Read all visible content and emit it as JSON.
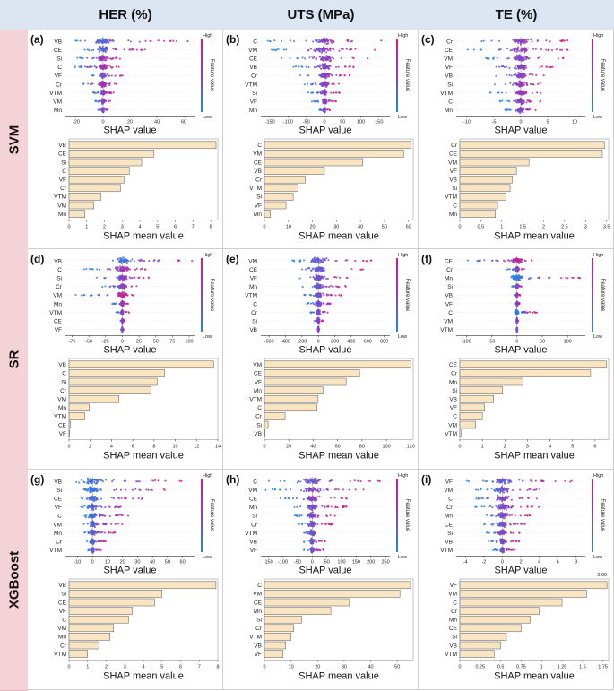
{
  "columns": [
    "HER (%)",
    "UTS (MPa)",
    "TE (%)"
  ],
  "rows": [
    "SVM",
    "SR",
    "XGBoost"
  ],
  "legend": {
    "high": "High",
    "low": "Low",
    "title": "Feature value"
  },
  "colors": {
    "high": "#e0157d",
    "low": "#1e88e5",
    "mid": "#8a3fc8",
    "bar_fill": "#fae5c3",
    "bar_stroke": "#555555",
    "col_header_bg": "#dce6f2",
    "row_header_bg": "#f3d3d7"
  },
  "chart_data": [
    {
      "panel": "(a)",
      "model": "SVM",
      "target": "HER (%)",
      "beeswarm": {
        "type": "scatter",
        "xlabel": "SHAP value",
        "features": [
          "VB",
          "CE",
          "Si",
          "C",
          "VF",
          "Cr",
          "VTM",
          "VM",
          "Mn"
        ],
        "xticks": [
          -20,
          0,
          20,
          40,
          60
        ],
        "xlim": [
          -28,
          68
        ],
        "spreads": [
          [
            -22,
            66
          ],
          [
            -14,
            32
          ],
          [
            -20,
            16
          ],
          [
            -22,
            12
          ],
          [
            -10,
            16
          ],
          [
            -18,
            10
          ],
          [
            -8,
            8
          ],
          [
            -6,
            6
          ],
          [
            -4,
            4
          ]
        ]
      },
      "bar": {
        "type": "bar",
        "xlabel": "SHAP mean value",
        "categories": [
          "VB",
          "CE",
          "Si",
          "C",
          "VF",
          "Cr",
          "VTM",
          "VM",
          "Mn"
        ],
        "values": [
          8.3,
          4.8,
          4.1,
          3.4,
          3.1,
          2.9,
          1.8,
          1.4,
          0.9
        ],
        "xticks": [
          0,
          1,
          2,
          3,
          4,
          5,
          6,
          7,
          8
        ],
        "xlim": [
          0,
          8.4
        ]
      }
    },
    {
      "panel": "(b)",
      "model": "SVM",
      "target": "UTS (MPa)",
      "beeswarm": {
        "type": "scatter",
        "xlabel": "SHAP value",
        "features": [
          "C",
          "VM",
          "CE",
          "VB",
          "Cr",
          "VTM",
          "Si",
          "VF",
          "Mn"
        ],
        "xticks": [
          -150,
          -100,
          -50,
          0,
          50,
          100,
          150
        ],
        "xlim": [
          -175,
          180
        ],
        "spreads": [
          [
            -160,
            165
          ],
          [
            -150,
            150
          ],
          [
            -120,
            120
          ],
          [
            -90,
            90
          ],
          [
            -70,
            70
          ],
          [
            -55,
            55
          ],
          [
            -45,
            45
          ],
          [
            -35,
            35
          ],
          [
            -15,
            15
          ]
        ]
      },
      "bar": {
        "type": "bar",
        "xlabel": "SHAP mean value",
        "categories": [
          "C",
          "VM",
          "CE",
          "VB",
          "Cr",
          "VTM",
          "Si",
          "VF",
          "Mn"
        ],
        "values": [
          61,
          58,
          41,
          25,
          17,
          14,
          12,
          9,
          2.5
        ],
        "xticks": [
          0,
          10,
          20,
          30,
          40,
          50,
          60
        ],
        "xlim": [
          0,
          62
        ]
      }
    },
    {
      "panel": "(c)",
      "model": "SVM",
      "target": "TE (%)",
      "beeswarm": {
        "type": "scatter",
        "xlabel": "SHAP value",
        "features": [
          "Cr",
          "CE",
          "VM",
          "VF",
          "VB",
          "Si",
          "VTM",
          "C",
          "Mn"
        ],
        "xticks": [
          -10,
          -5,
          0,
          5,
          10
        ],
        "xlim": [
          -12,
          12
        ],
        "spreads": [
          [
            -9,
            9
          ],
          [
            -10,
            9
          ],
          [
            -7,
            8
          ],
          [
            -6,
            6
          ],
          [
            -5,
            5
          ],
          [
            -5,
            4
          ],
          [
            -6,
            4
          ],
          [
            -4,
            4
          ],
          [
            -3,
            3
          ]
        ]
      },
      "bar": {
        "type": "bar",
        "xlabel": "SHAP mean value",
        "categories": [
          "Cr",
          "CE",
          "VM",
          "VF",
          "VB",
          "Si",
          "VTM",
          "C",
          "Mn"
        ],
        "values": [
          3.45,
          3.4,
          1.65,
          1.35,
          1.25,
          1.2,
          1.1,
          0.9,
          0.85
        ],
        "xticks": [
          0,
          0.5,
          1,
          1.5,
          2,
          2.5,
          3,
          3.5
        ],
        "xlim": [
          0,
          3.55
        ]
      }
    },
    {
      "panel": "(d)",
      "model": "SR",
      "target": "HER (%)",
      "beeswarm": {
        "type": "scatter",
        "xlabel": "SHAP value",
        "features": [
          "VB",
          "C",
          "Si",
          "Cr",
          "VM",
          "Mn",
          "VTM",
          "CE",
          "VF"
        ],
        "xticks": [
          -75,
          -50,
          -25,
          0,
          25,
          50,
          75,
          100
        ],
        "xlim": [
          -85,
          108
        ],
        "spreads": [
          [
            -15,
            105
          ],
          [
            -60,
            40
          ],
          [
            -40,
            40
          ],
          [
            -30,
            30
          ],
          [
            -70,
            20
          ],
          [
            -15,
            10
          ],
          [
            -10,
            10
          ],
          [
            -3,
            3
          ],
          [
            -2,
            2
          ]
        ]
      },
      "bar": {
        "type": "bar",
        "xlabel": "SHAP mean value",
        "categories": [
          "VB",
          "C",
          "Si",
          "Cr",
          "VM",
          "Mn",
          "VTM",
          "CE",
          "VF"
        ],
        "values": [
          13.6,
          9.0,
          8.3,
          7.7,
          4.7,
          1.9,
          1.5,
          0.15,
          0.05
        ],
        "xticks": [
          0,
          2,
          4,
          6,
          8,
          10,
          12,
          14
        ],
        "xlim": [
          0,
          14
        ]
      }
    },
    {
      "panel": "(e)",
      "model": "SR",
      "target": "UTS (MPa)",
      "beeswarm": {
        "type": "scatter",
        "xlabel": "SHAP value",
        "features": [
          "VM",
          "CE",
          "VF",
          "Mn",
          "VTM",
          "C",
          "Cr",
          "Si",
          "VB"
        ],
        "xticks": [
          -600,
          -400,
          -200,
          0,
          200,
          400,
          600,
          800
        ],
        "xlim": [
          -700,
          870
        ],
        "spreads": [
          [
            -350,
            650
          ],
          [
            -300,
            550
          ],
          [
            -250,
            400
          ],
          [
            -200,
            350
          ],
          [
            -180,
            300
          ],
          [
            -150,
            250
          ],
          [
            -100,
            120
          ],
          [
            -50,
            60
          ],
          [
            -10,
            10
          ]
        ]
      },
      "bar": {
        "type": "bar",
        "xlabel": "SHAP mean value",
        "categories": [
          "VM",
          "CE",
          "VF",
          "Mn",
          "VTM",
          "C",
          "Cr",
          "Si",
          "VB"
        ],
        "values": [
          120,
          78,
          67,
          48,
          44,
          43,
          17,
          3,
          0.5
        ],
        "xticks": [
          0,
          20,
          40,
          60,
          80,
          100,
          120
        ],
        "xlim": [
          0,
          122
        ]
      }
    },
    {
      "panel": "(f)",
      "model": "SR",
      "target": "TE (%)",
      "beeswarm": {
        "type": "scatter",
        "xlabel": "SHAP value",
        "features": [
          "CE",
          "Cr",
          "Mn",
          "Si",
          "VB",
          "VF",
          "C",
          "VM",
          "VTM"
        ],
        "xticks": [
          -100,
          -50,
          0,
          50,
          100
        ],
        "xlim": [
          -120,
          135
        ],
        "spreads": [
          [
            -100,
            30
          ],
          [
            -20,
            20
          ],
          [
            -12,
            130
          ],
          [
            -10,
            10
          ],
          [
            -6,
            6
          ],
          [
            -5,
            5
          ],
          [
            -5,
            40
          ],
          [
            -2,
            2
          ],
          [
            -1,
            1
          ]
        ]
      },
      "bar": {
        "type": "bar",
        "xlabel": "SHAP mean value",
        "categories": [
          "CE",
          "Cr",
          "Mn",
          "Si",
          "VB",
          "VF",
          "C",
          "VM",
          "VTM"
        ],
        "values": [
          6.5,
          5.8,
          2.8,
          1.9,
          1.5,
          1.1,
          1.0,
          0.7,
          0.05
        ],
        "xticks": [
          0,
          1,
          2,
          3,
          4,
          5,
          6
        ],
        "xlim": [
          0,
          6.6
        ]
      }
    },
    {
      "panel": "(g)",
      "model": "XGBoost",
      "target": "HER (%)",
      "beeswarm": {
        "type": "scatter",
        "xlabel": "SHAP value",
        "features": [
          "VB",
          "Si",
          "CE",
          "VF",
          "C",
          "VM",
          "Mn",
          "Cr",
          "VTM"
        ],
        "xticks": [
          -10,
          0,
          10,
          20,
          30,
          40,
          50,
          60
        ],
        "xlim": [
          -18,
          68
        ],
        "spreads": [
          [
            -12,
            65
          ],
          [
            -8,
            50
          ],
          [
            -8,
            35
          ],
          [
            -8,
            28
          ],
          [
            -6,
            25
          ],
          [
            -6,
            20
          ],
          [
            -6,
            15
          ],
          [
            -4,
            10
          ],
          [
            -3,
            6
          ]
        ]
      },
      "bar": {
        "type": "bar",
        "xlabel": "SHAP mean value",
        "categories": [
          "VB",
          "Si",
          "CE",
          "VF",
          "C",
          "VM",
          "Mn",
          "Cr",
          "VTM"
        ],
        "values": [
          7.9,
          5.0,
          4.6,
          3.4,
          3.2,
          2.4,
          2.2,
          1.6,
          1.0
        ],
        "xticks": [
          0,
          1,
          2,
          3,
          4,
          5,
          6,
          7,
          8
        ],
        "xlim": [
          0,
          8
        ]
      }
    },
    {
      "panel": "(h)",
      "model": "XGBoost",
      "target": "UTS (MPa)",
      "beeswarm": {
        "type": "scatter",
        "xlabel": "SHAP value",
        "features": [
          "C",
          "VM",
          "CE",
          "Mn",
          "Si",
          "Cr",
          "VTM",
          "VB",
          "VF"
        ],
        "xticks": [
          -150,
          -100,
          -50,
          0,
          50,
          100,
          150,
          200,
          250
        ],
        "xlim": [
          -175,
          265
        ],
        "spreads": [
          [
            -150,
            250
          ],
          [
            -160,
            200
          ],
          [
            -120,
            120
          ],
          [
            -80,
            120
          ],
          [
            -60,
            80
          ],
          [
            -50,
            70
          ],
          [
            -40,
            60
          ],
          [
            -30,
            50
          ],
          [
            -30,
            40
          ]
        ]
      },
      "bar": {
        "type": "bar",
        "xlabel": "SHAP mean value",
        "categories": [
          "C",
          "VM",
          "CE",
          "Mn",
          "Si",
          "Cr",
          "VTM",
          "VB",
          "VF"
        ],
        "values": [
          55,
          51,
          32,
          25,
          14,
          11,
          10,
          8,
          7
        ],
        "xticks": [
          0,
          10,
          20,
          30,
          40,
          50
        ],
        "xlim": [
          0,
          56
        ]
      }
    },
    {
      "panel": "(i)",
      "model": "XGBoost",
      "target": "TE (%)",
      "beeswarm": {
        "type": "scatter",
        "xlabel": "SHAP value",
        "features": [
          "VF",
          "VM",
          "C",
          "Cr",
          "Mn",
          "CE",
          "Si",
          "VB",
          "VTM"
        ],
        "xticks": [
          -4,
          -2,
          0,
          2,
          4,
          6,
          8
        ],
        "xlim": [
          -5,
          9
        ],
        "spreads": [
          [
            -4,
            8
          ],
          [
            -3,
            6
          ],
          [
            -3,
            4
          ],
          [
            -3,
            4
          ],
          [
            -2,
            3
          ],
          [
            -2,
            3
          ],
          [
            -2,
            2
          ],
          [
            -1.5,
            2
          ],
          [
            -1,
            1.5
          ]
        ]
      },
      "bar": {
        "type": "bar",
        "xlabel": "SHAP mean value",
        "categories": [
          "VF",
          "VM",
          "C",
          "Cr",
          "Mn",
          "CE",
          "Si",
          "VB",
          "VTM"
        ],
        "values": [
          1.8,
          1.55,
          1.25,
          0.97,
          0.86,
          0.75,
          0.57,
          0.5,
          0.42
        ],
        "xticks": [
          0,
          0.25,
          0.5,
          0.75,
          1.0,
          1.25,
          1.5,
          1.75
        ],
        "xlim": [
          0,
          1.82
        ],
        "annotation": "3.00"
      }
    }
  ]
}
